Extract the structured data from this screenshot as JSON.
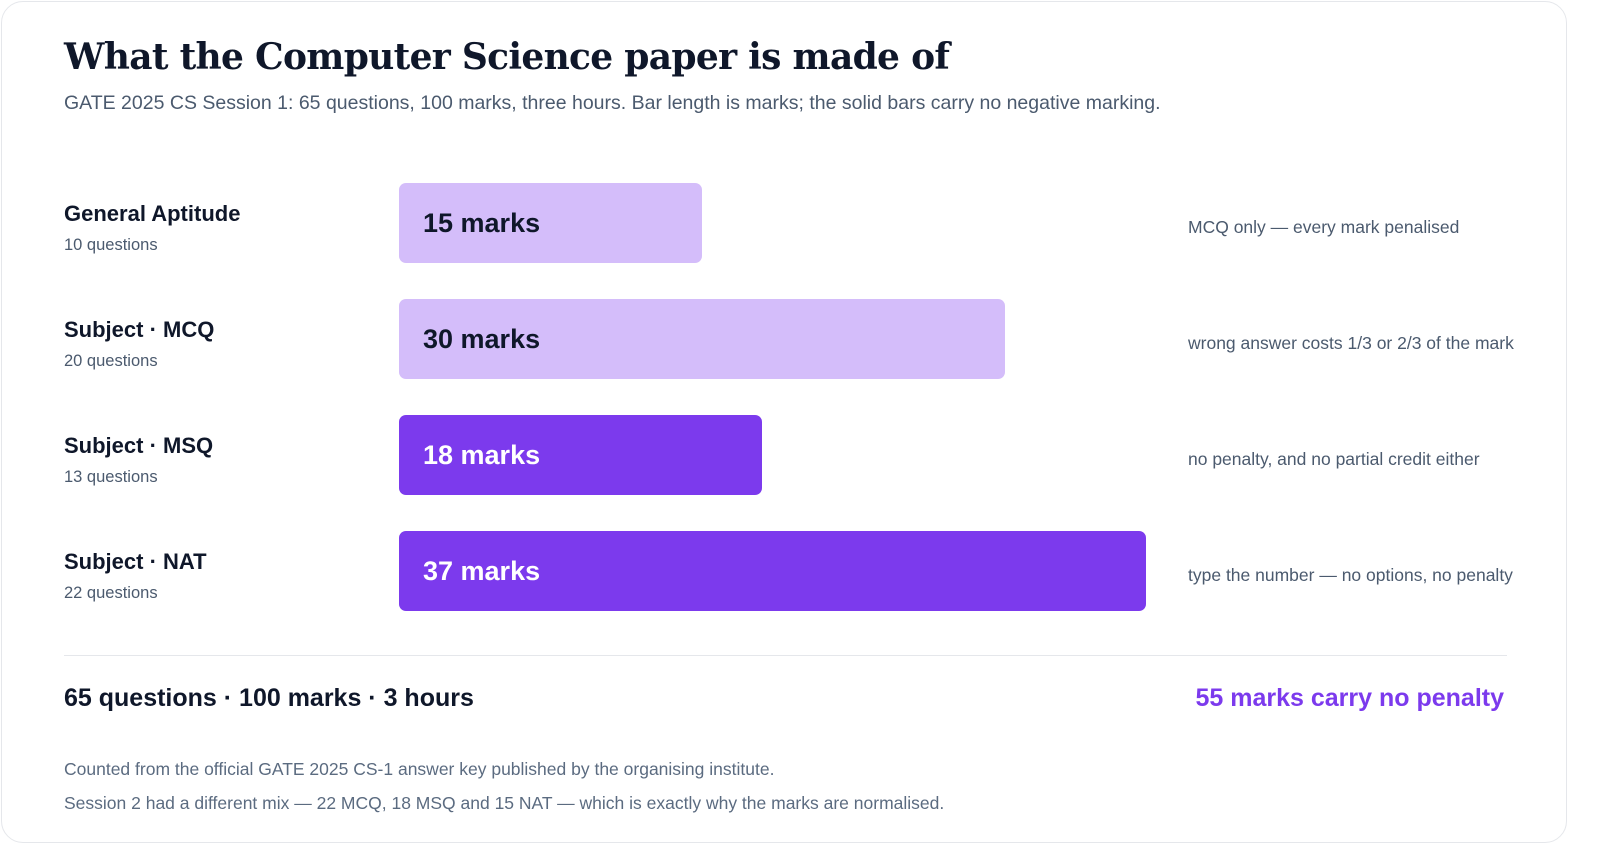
{
  "title": "What the Computer Science paper is made of",
  "subtitle": "GATE 2025 CS Session 1: 65 questions, 100 marks, three hours. Bar length is marks; the solid bars carry no negative marking.",
  "colors": {
    "penalised_bar": "#d4bdfa",
    "no_penalty_bar": "#7c3aed",
    "accent": "#7c3aed"
  },
  "chart_data": {
    "type": "bar",
    "orientation": "horizontal",
    "categories": [
      "General Aptitude",
      "Subject · MCQ",
      "Subject · MSQ",
      "Subject · NAT"
    ],
    "question_counts": [
      "10 questions",
      "20 questions",
      "13 questions",
      "22 questions"
    ],
    "values": [
      15,
      30,
      18,
      37
    ],
    "value_labels": [
      "15 marks",
      "30 marks",
      "18 marks",
      "37 marks"
    ],
    "negative_marking": [
      true,
      true,
      false,
      false
    ],
    "notes": [
      "MCQ only — every mark penalised",
      "wrong answer costs 1/3 or 2/3 of the mark",
      "no penalty, and no partial credit either",
      "type the number — no options, no penalty"
    ],
    "legend": "none",
    "grid": false
  },
  "summary": {
    "totals": "65 questions · 100 marks · 3 hours",
    "highlight": "55 marks carry no penalty"
  },
  "footnotes": [
    "Counted from the official GATE 2025 CS-1 answer key published by the organising institute.",
    "Session 2 had a different mix — 22 MCQ, 18 MSQ and 15 NAT — which is exactly why the marks are normalised."
  ]
}
